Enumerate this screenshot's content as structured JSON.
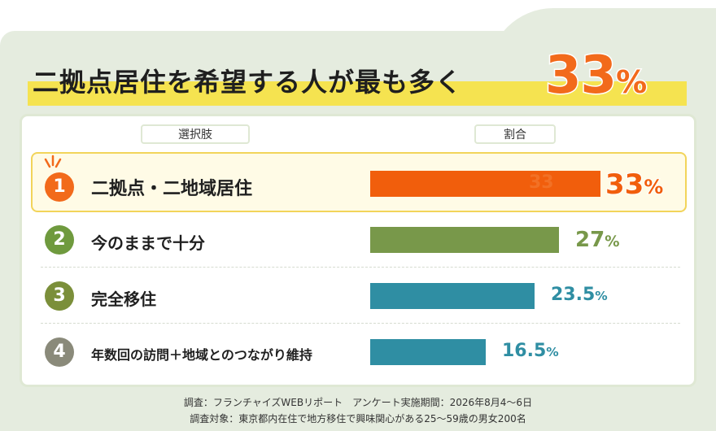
{
  "headline": {
    "text": "二拠点居住を希望する人が最も多く",
    "percent": "33",
    "unit": "%"
  },
  "table_header": {
    "choice": "選択肢",
    "ratio": "割合"
  },
  "colors": {
    "orange": "#f15e0c",
    "green": "#78984a",
    "teal": "#2f8ea3",
    "badge_orange": "#f26a1b",
    "badge_green": "#6f9a3e",
    "badge_olive": "#7b8f3a",
    "badge_gray": "#8a8a7a"
  },
  "chart_data": {
    "type": "bar",
    "orientation": "horizontal",
    "categories": [
      "二拠点・二地域居住",
      "今のままで十分",
      "完全移住",
      "年数回の訪問＋地域とのつながり維持"
    ],
    "values": [
      33,
      27,
      23.5,
      16.5
    ],
    "value_labels": [
      "33",
      "27",
      "23.5",
      "16.5"
    ],
    "ranks": [
      "1",
      "2",
      "3",
      "4"
    ],
    "unit": "%",
    "xlim": [
      0,
      33
    ],
    "grid": false,
    "legend": "none"
  },
  "footer": {
    "line1": "調査：フランチャイズWEBリポート　アンケート実施期間：2026年8月4〜6日",
    "line2": "調査対象：東京都内在住で地方移住で興味関心がある25〜59歳の男女200名"
  }
}
